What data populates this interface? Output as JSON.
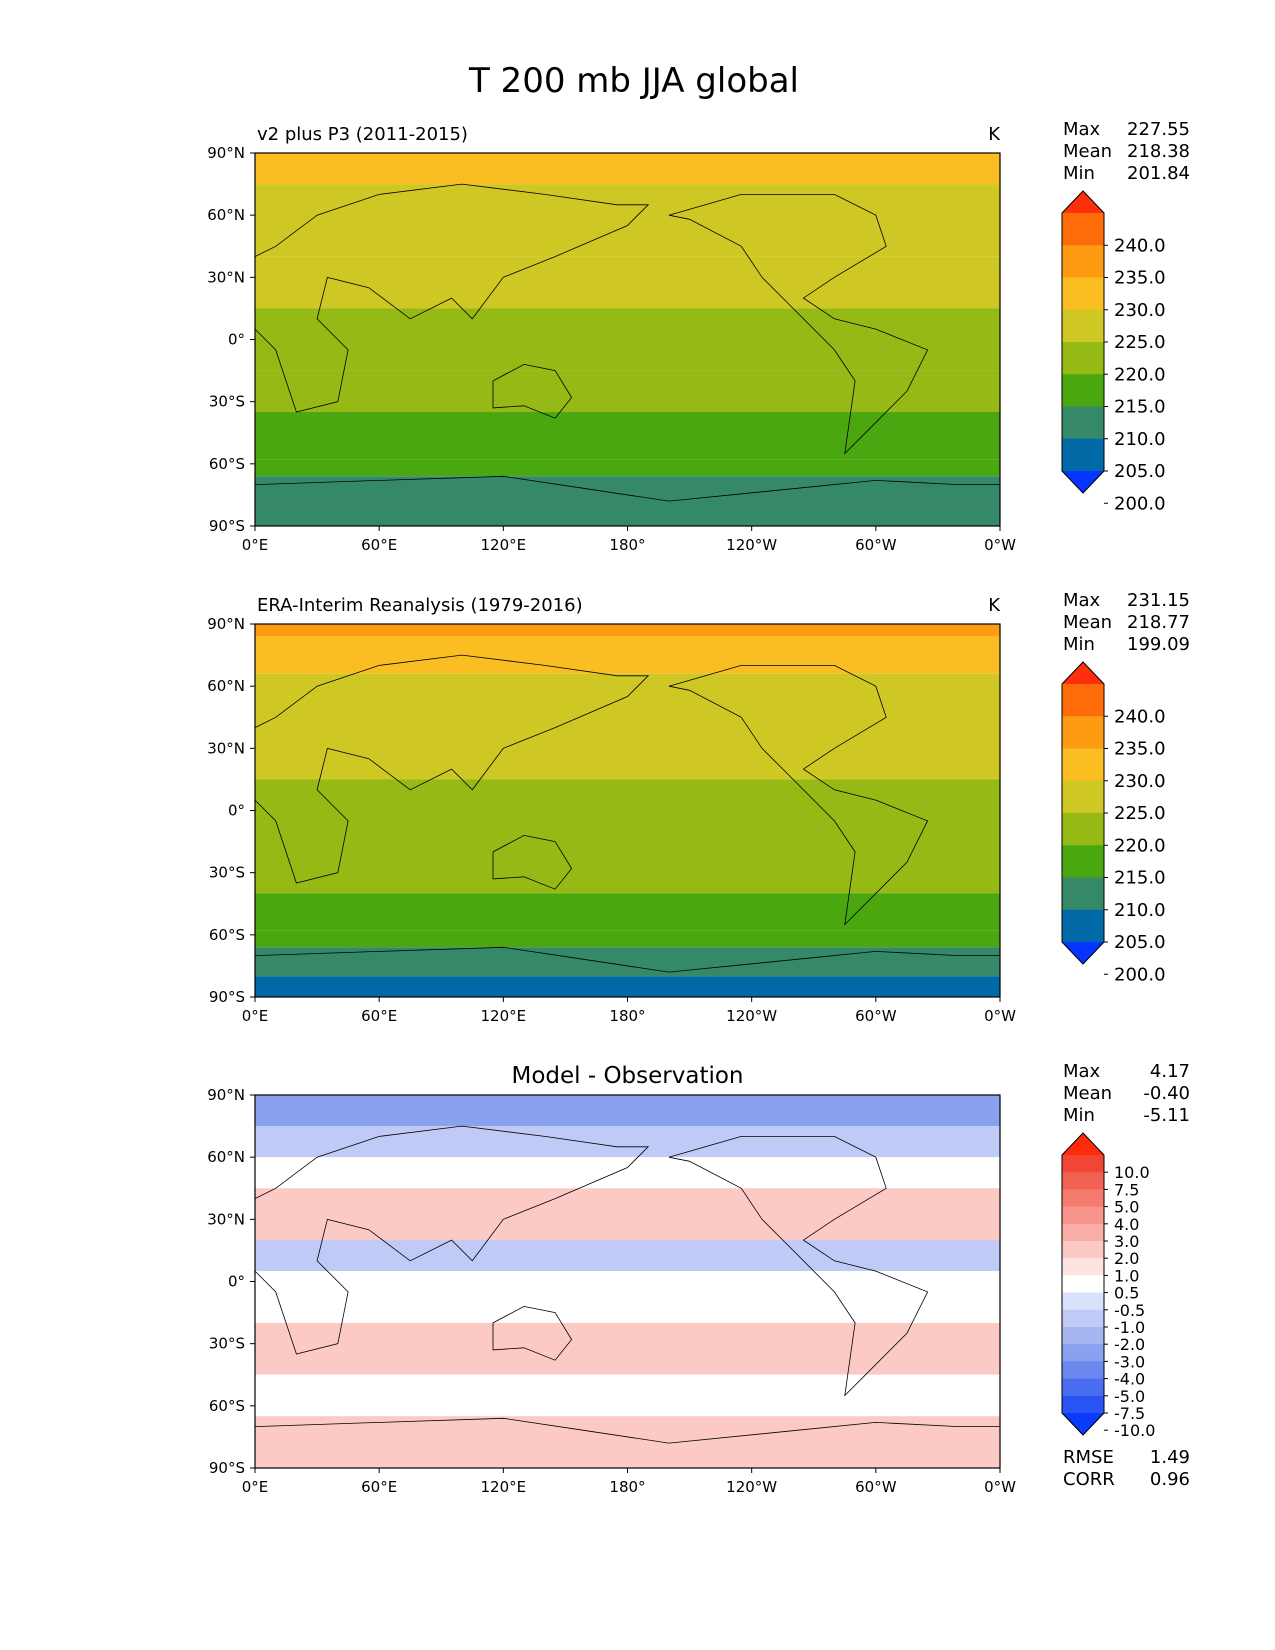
{
  "figure": {
    "title": "T 200 mb JJA global"
  },
  "axes": {
    "lat_ticks": [
      "90°N",
      "60°N",
      "30°N",
      "0°",
      "30°S",
      "60°S",
      "90°S"
    ],
    "lon_ticks": [
      "0°E",
      "60°E",
      "120°E",
      "180°",
      "120°W",
      "60°W",
      "0°W"
    ],
    "lat_range": [
      -90,
      90
    ],
    "lon_range": [
      0,
      360
    ]
  },
  "stat_labels": {
    "max": "Max",
    "mean": "Mean",
    "min": "Min",
    "rmse": "RMSE",
    "corr": "CORR"
  },
  "colors": {
    "abs_levels": [
      "#0535ff",
      "#016aa6",
      "#358968",
      "#4aa710",
      "#95b915",
      "#cfc824",
      "#fbbe22",
      "#fd9b12",
      "#fe6c0a",
      "#fe2f0c"
    ],
    "diff_levels": [
      "#0a3bfa",
      "#2a55f5",
      "#4a6ef0",
      "#6a88ee",
      "#8aa1ef",
      "#a5b6f1",
      "#bfcaf6",
      "#d9e2fa",
      "#ffffff",
      "#fde4e2",
      "#fbcac5",
      "#f9afa8",
      "#f7958b",
      "#f57b6e",
      "#f36152",
      "#f14636",
      "#ff2a0a"
    ]
  },
  "chart_data": [
    {
      "type": "heatmap",
      "panel": "test",
      "title": "v2 plus P3 (2011-2015)",
      "units": "K",
      "stats": {
        "max": "227.55",
        "mean": "218.38",
        "min": "201.84"
      },
      "colorbar": {
        "levels": [
          200,
          205,
          210,
          215,
          220,
          225,
          230,
          235,
          240
        ],
        "tick_labels": [
          "240.0",
          "235.0",
          "230.0",
          "225.0",
          "220.0",
          "215.0",
          "210.0",
          "205.0",
          "200.0"
        ],
        "extend": "both"
      },
      "zonal_pattern": [
        {
          "lat_from": 90,
          "lat_to": 75,
          "value": 227
        },
        {
          "lat_from": 75,
          "lat_to": 40,
          "value": 222
        },
        {
          "lat_from": 40,
          "lat_to": 15,
          "value": 222
        },
        {
          "lat_from": 15,
          "lat_to": -15,
          "value": 217
        },
        {
          "lat_from": -15,
          "lat_to": -35,
          "value": 217
        },
        {
          "lat_from": -35,
          "lat_to": -58,
          "value": 212
        },
        {
          "lat_from": -58,
          "lat_to": -66,
          "value": 212
        },
        {
          "lat_from": -66,
          "lat_to": -90,
          "value": 207
        }
      ]
    },
    {
      "type": "heatmap",
      "panel": "reference",
      "title": "ERA-Interim Reanalysis (1979-2016)",
      "units": "K",
      "stats": {
        "max": "231.15",
        "mean": "218.77",
        "min": "199.09"
      },
      "colorbar": {
        "levels": [
          200,
          205,
          210,
          215,
          220,
          225,
          230,
          235,
          240
        ],
        "tick_labels": [
          "240.0",
          "235.0",
          "230.0",
          "225.0",
          "220.0",
          "215.0",
          "210.0",
          "205.0",
          "200.0"
        ],
        "extend": "both"
      },
      "zonal_pattern": [
        {
          "lat_from": 90,
          "lat_to": 84,
          "value": 231
        },
        {
          "lat_from": 84,
          "lat_to": 66,
          "value": 227
        },
        {
          "lat_from": 66,
          "lat_to": 15,
          "value": 222
        },
        {
          "lat_from": 15,
          "lat_to": -40,
          "value": 217
        },
        {
          "lat_from": -40,
          "lat_to": -58,
          "value": 212
        },
        {
          "lat_from": -58,
          "lat_to": -66,
          "value": 211
        },
        {
          "lat_from": -66,
          "lat_to": -80,
          "value": 207
        },
        {
          "lat_from": -80,
          "lat_to": -90,
          "value": 201
        }
      ]
    },
    {
      "type": "heatmap",
      "panel": "difference",
      "title": "Model - Observation",
      "units": "",
      "stats": {
        "max": "4.17",
        "mean": "-0.40",
        "min": "-5.11",
        "rmse": "1.49",
        "corr": "0.96"
      },
      "colorbar": {
        "levels": [
          -10.0,
          -7.5,
          -5.0,
          -4.0,
          -3.0,
          -2.0,
          -1.0,
          -0.5,
          0.5,
          1.0,
          2.0,
          3.0,
          4.0,
          5.0,
          7.5,
          10.0
        ],
        "tick_labels": [
          "10.0",
          "7.5",
          "5.0",
          "4.0",
          "3.0",
          "2.0",
          "1.0",
          "0.5",
          "-0.5",
          "-1.0",
          "-2.0",
          "-3.0",
          "-4.0",
          "-5.0",
          "-7.5",
          "-10.0"
        ],
        "extend": "both"
      },
      "zonal_pattern": [
        {
          "lat_from": 90,
          "lat_to": 75,
          "value": -3.5
        },
        {
          "lat_from": 75,
          "lat_to": 60,
          "value": -1.5
        },
        {
          "lat_from": 60,
          "lat_to": 45,
          "value": 0
        },
        {
          "lat_from": 45,
          "lat_to": 20,
          "value": 1.5
        },
        {
          "lat_from": 20,
          "lat_to": 5,
          "value": -1.5
        },
        {
          "lat_from": 5,
          "lat_to": -20,
          "value": 0
        },
        {
          "lat_from": -20,
          "lat_to": -45,
          "value": 1.5
        },
        {
          "lat_from": -45,
          "lat_to": -65,
          "value": 0
        },
        {
          "lat_from": -65,
          "lat_to": -90,
          "value": 1.5
        }
      ]
    }
  ]
}
